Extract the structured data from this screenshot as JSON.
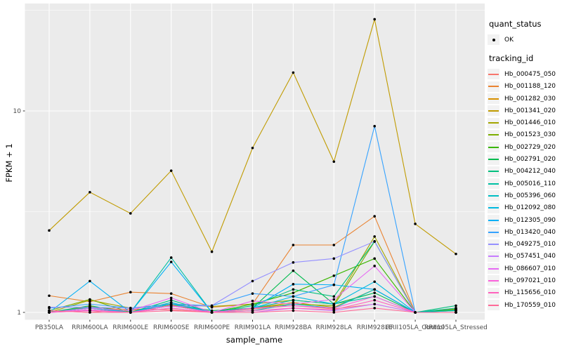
{
  "figure": {
    "background": "#FFFFFF",
    "panel_background": "#EBEBEB",
    "gridline_color": "#FFFFFF",
    "tick_label_color": "#4D4D4D",
    "axis_title_color": "#000000",
    "point_color": "#000000",
    "legend_key_background": "#F2F2F2"
  },
  "legend": {
    "quant_status_title": "quant_status",
    "quant_status_items": [
      {
        "label": "OK",
        "marker": "black-point"
      }
    ],
    "tracking_id_title": "tracking_id"
  },
  "chart_data": {
    "type": "line",
    "title": "",
    "xlabel": "sample_name",
    "ylabel": "FPKM + 1",
    "y_scale": "log10",
    "ylim": [
      1,
      34
    ],
    "y_ticks": [
      {
        "value": 1,
        "label": "1"
      },
      {
        "value": 10,
        "label": "10"
      }
    ],
    "y_minor_breaks": [
      3.162,
      31.62
    ],
    "grid": "on",
    "legend_position": "right",
    "point_marker": "black point (quant_status = OK)",
    "categories": [
      "PB350LA",
      "RRIM600LA",
      "RRIM600LE",
      "RRIM600SE",
      "RRIM600PE",
      "RRIM901LA",
      "RRIM928BA",
      "RRIM928LA",
      "RRIM928LE",
      "RRII105LA_Control",
      "RRII105LA_Stressed"
    ],
    "series": [
      {
        "name": "Hb_000475_050",
        "color": "#F8766D",
        "values": [
          1.02,
          1.0,
          1.04,
          1.03,
          1.0,
          1.04,
          1.08,
          1.04,
          1.1,
          1.0,
          1.0
        ]
      },
      {
        "name": "Hb_001188_120",
        "color": "#EA8331",
        "values": [
          1.21,
          1.13,
          1.26,
          1.24,
          1.06,
          1.1,
          2.16,
          2.16,
          3.0,
          1.0,
          1.05
        ]
      },
      {
        "name": "Hb_001282_030",
        "color": "#D89000",
        "values": [
          1.0,
          1.07,
          1.02,
          1.09,
          1.0,
          1.05,
          1.12,
          1.06,
          1.3,
          1.0,
          1.02
        ]
      },
      {
        "name": "Hb_001341_020",
        "color": "#C09B00",
        "values": [
          2.55,
          3.95,
          3.1,
          5.05,
          2.0,
          6.55,
          15.5,
          5.6,
          28.5,
          2.75,
          1.95
        ]
      },
      {
        "name": "Hb_001446_010",
        "color": "#A3A500",
        "values": [
          1.0,
          1.15,
          1.05,
          1.1,
          1.07,
          1.1,
          1.15,
          1.1,
          2.38,
          1.0,
          1.04
        ]
      },
      {
        "name": "Hb_001523_030",
        "color": "#7CAE00",
        "values": [
          1.02,
          1.16,
          1.0,
          1.12,
          1.0,
          1.05,
          1.1,
          1.08,
          2.25,
          1.0,
          1.0
        ]
      },
      {
        "name": "Hb_002729_020",
        "color": "#39B600",
        "values": [
          1.0,
          1.05,
          1.0,
          1.08,
          1.0,
          1.1,
          1.25,
          1.52,
          1.85,
          1.0,
          1.03
        ]
      },
      {
        "name": "Hb_002791_020",
        "color": "#00BB4E",
        "values": [
          1.0,
          1.08,
          1.0,
          1.1,
          1.02,
          1.05,
          1.61,
          1.1,
          1.25,
          1.0,
          1.03
        ]
      },
      {
        "name": "Hb_004212_040",
        "color": "#00BF7D",
        "values": [
          1.0,
          1.05,
          1.0,
          1.15,
          1.0,
          1.08,
          1.3,
          1.2,
          2.25,
          1.0,
          1.08
        ]
      },
      {
        "name": "Hb_005016_110",
        "color": "#00C1A3",
        "values": [
          1.0,
          1.06,
          1.0,
          1.87,
          1.0,
          1.05,
          1.15,
          1.1,
          1.2,
          1.0,
          1.05
        ]
      },
      {
        "name": "Hb_005396_060",
        "color": "#00BFC4",
        "values": [
          1.0,
          1.03,
          1.0,
          1.1,
          1.0,
          1.02,
          1.1,
          1.05,
          1.3,
          1.0,
          1.02
        ]
      },
      {
        "name": "Hb_012092_080",
        "color": "#00BAE0",
        "values": [
          1.0,
          1.05,
          1.0,
          1.12,
          1.0,
          1.05,
          1.2,
          1.1,
          1.42,
          1.0,
          1.0
        ]
      },
      {
        "name": "Hb_012305_090",
        "color": "#00B0F6",
        "values": [
          1.0,
          1.43,
          1.0,
          1.78,
          1.0,
          1.05,
          1.38,
          1.37,
          1.3,
          1.0,
          1.0
        ]
      },
      {
        "name": "Hb_013420_040",
        "color": "#35A2FF",
        "values": [
          1.05,
          1.1,
          1.05,
          1.1,
          1.08,
          1.24,
          1.2,
          1.37,
          8.4,
          1.0,
          1.0
        ]
      },
      {
        "name": "Hb_049275_010",
        "color": "#9590FF",
        "values": [
          1.06,
          1.06,
          1.05,
          1.07,
          1.08,
          1.43,
          1.77,
          1.85,
          2.25,
          1.0,
          1.0
        ]
      },
      {
        "name": "Hb_057451_040",
        "color": "#C77CFF",
        "values": [
          1.0,
          1.02,
          1.0,
          1.05,
          1.0,
          1.0,
          1.05,
          1.02,
          1.1,
          1.0,
          1.0
        ]
      },
      {
        "name": "Hb_086607_010",
        "color": "#E76BF3",
        "values": [
          1.0,
          1.05,
          1.02,
          1.18,
          1.0,
          1.14,
          1.1,
          1.16,
          1.7,
          1.0,
          1.0
        ]
      },
      {
        "name": "Hb_097021_010",
        "color": "#FA62DB",
        "values": [
          1.0,
          1.03,
          1.0,
          1.08,
          1.0,
          1.05,
          1.08,
          1.05,
          1.2,
          1.0,
          1.0
        ]
      },
      {
        "name": "Hb_115656_010",
        "color": "#FF62BC",
        "values": [
          1.0,
          1.02,
          1.0,
          1.05,
          1.0,
          1.02,
          1.05,
          1.03,
          1.15,
          1.0,
          1.0
        ]
      },
      {
        "name": "Hb_170559_010",
        "color": "#FF6A98",
        "values": [
          1.02,
          1.0,
          1.0,
          1.02,
          1.0,
          1.0,
          1.02,
          1.0,
          1.05,
          1.0,
          1.0
        ]
      }
    ]
  }
}
